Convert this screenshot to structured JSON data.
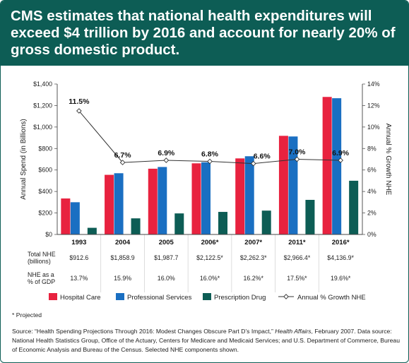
{
  "header": {
    "title": "CMS estimates that national health expenditures will exceed $4 trillion by 2016 and account for nearly 20% of gross domestic product."
  },
  "chart_data": {
    "type": "bar",
    "categories": [
      "1993",
      "2004",
      "2005",
      "2006*",
      "2007*",
      "2011*",
      "2016*"
    ],
    "series": [
      {
        "name": "Hospital Care",
        "color": "#e8223f",
        "values": [
          335,
          555,
          612,
          662,
          708,
          918,
          1280
        ]
      },
      {
        "name": "Professional Services",
        "color": "#1a6fc2",
        "values": [
          300,
          570,
          628,
          672,
          728,
          912,
          1268
        ]
      },
      {
        "name": "Prescription Drug",
        "color": "#0d5d55",
        "values": [
          62,
          150,
          196,
          210,
          222,
          322,
          500
        ]
      }
    ],
    "line_series": {
      "name": "Annual % Growth NHE",
      "values": [
        11.5,
        6.7,
        6.9,
        6.8,
        6.6,
        7.0,
        6.9
      ],
      "labels": [
        "11.5%",
        "6.7%",
        "6.9%",
        "6.8%",
        "6.6%",
        "7.0%",
        "6.9%"
      ]
    },
    "ylabel": "Annual Spend (in Billions)",
    "y2label": "Annual % Growth NHE",
    "ylim": [
      0,
      1400
    ],
    "y2lim": [
      0,
      14
    ],
    "yticks": [
      "$0",
      "$200",
      "$400",
      "$600",
      "$800",
      "$1,000",
      "$1,200",
      "$1,400"
    ],
    "y2ticks": [
      "0%",
      "2%",
      "4%",
      "6%",
      "8%",
      "10%",
      "12%",
      "14%"
    ],
    "table_rows": [
      {
        "label_lines": [
          "Total NHE",
          "(billions)"
        ],
        "values": [
          "$912.6",
          "$1,858.9",
          "$1,987.7",
          "$2,122.5*",
          "$2,262.3*",
          "$2,966.4*",
          "$4,136.9*"
        ]
      },
      {
        "label_lines": [
          "NHE as a",
          "% of GDP"
        ],
        "values": [
          "13.7%",
          "15.9%",
          "16.0%",
          "16.0%*",
          "16.2%*",
          "17.5%*",
          "19.6%*"
        ]
      }
    ],
    "legend_position": "bottom"
  },
  "footnote": "* Projected",
  "source": {
    "prefix": "Source: “Health Spending Projections Through 2016: Modest Changes Obscure Part D’s Impact,” ",
    "journal": "Health Affairs",
    "suffix": ", February 2007. Data source: National Health Statistics Group, Office of the Actuary, Centers for Medicare and Medicaid Services; and U.S. Department of Commerce, Bureau of Economic Analysis and Bureau of the Census. Selected NHE components shown."
  }
}
